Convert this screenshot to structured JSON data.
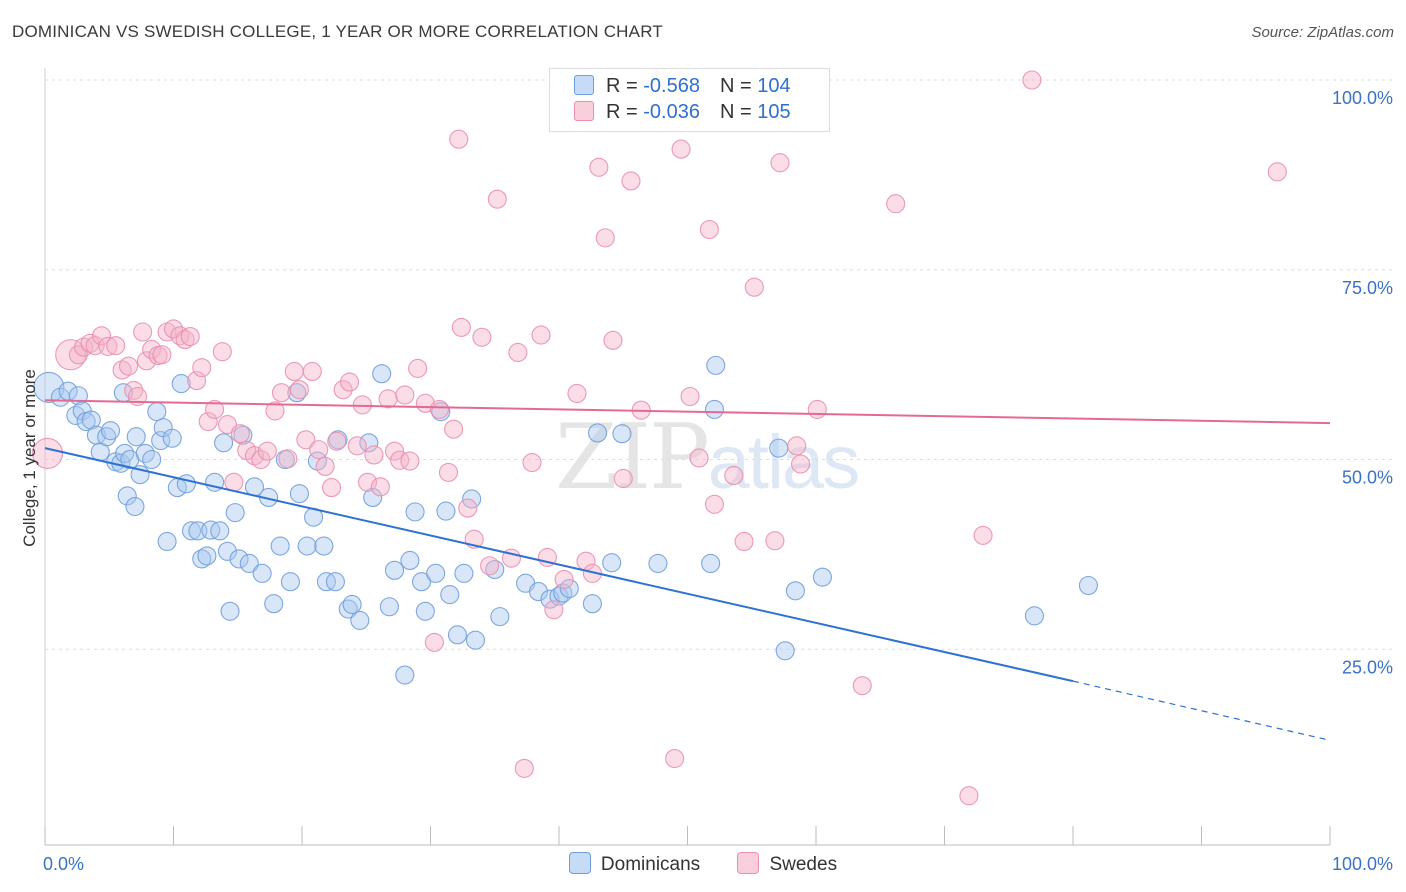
{
  "title": "DOMINICAN VS SWEDISH COLLEGE, 1 YEAR OR MORE CORRELATION CHART",
  "source": "Source: ZipAtlas.com",
  "watermark": {
    "zip": "ZIP",
    "atlas": "atlas"
  },
  "legend": {
    "rows": [
      {
        "r_label": "R = ",
        "r_value": "-0.568",
        "n_label": "N = ",
        "n_value": "104",
        "color": "#a9c8f0"
      },
      {
        "r_label": "R = ",
        "r_value": "-0.036",
        "n_label": "N = ",
        "n_value": "105",
        "color": "#f5b3c8"
      }
    ]
  },
  "bottom_legend": [
    {
      "label": "Dominicans",
      "color": "#a9c8f0"
    },
    {
      "label": "Swedes",
      "color": "#f5b3c8"
    }
  ],
  "chart_data": {
    "type": "scatter",
    "title": "DOMINICAN VS SWEDISH COLLEGE, 1 YEAR OR MORE CORRELATION CHART",
    "xlabel": "",
    "ylabel": "College, 1 year or more",
    "xlim": [
      0,
      100
    ],
    "ylim": [
      0,
      100
    ],
    "x_tick_labels": [
      "0.0%",
      "100.0%"
    ],
    "y_tick_labels": [
      "25.0%",
      "50.0%",
      "75.0%",
      "100.0%"
    ],
    "y_ticks": [
      25,
      50,
      75,
      100
    ],
    "grid": true,
    "legend_position": "top-center",
    "series": [
      {
        "name": "Dominicans",
        "color": "#6f9fdc",
        "fill": "#a9c8f0",
        "trend": {
          "x0": 0,
          "y0": 51.5,
          "x1": 80,
          "y1": 20.8,
          "dash_to_x": 100,
          "dash_to_y": 13.0,
          "color": "#2f72d4"
        },
        "points": [
          [
            0.3,
            59.5,
            2
          ],
          [
            1.2,
            58.2,
            1
          ],
          [
            1.8,
            59.0,
            1
          ],
          [
            2.4,
            55.8,
            1
          ],
          [
            2.6,
            58.4,
            1
          ],
          [
            2.9,
            56.4,
            1
          ],
          [
            3.2,
            55.0,
            1
          ],
          [
            3.6,
            55.2,
            1
          ],
          [
            4.0,
            53.2,
            1
          ],
          [
            4.3,
            51.0,
            1
          ],
          [
            4.8,
            53.0,
            1
          ],
          [
            5.1,
            53.8,
            1
          ],
          [
            5.5,
            49.7,
            1
          ],
          [
            5.9,
            49.5,
            1
          ],
          [
            6.2,
            50.8,
            1
          ],
          [
            6.6,
            50.0,
            1
          ],
          [
            6.1,
            58.8,
            1
          ],
          [
            6.4,
            45.2,
            1
          ],
          [
            7.0,
            43.8,
            1
          ],
          [
            7.1,
            53.0,
            1
          ],
          [
            7.4,
            48.0,
            1
          ],
          [
            7.8,
            50.8,
            1
          ],
          [
            8.3,
            50.0,
            1
          ],
          [
            8.7,
            56.3,
            1
          ],
          [
            9.0,
            52.5,
            1
          ],
          [
            9.2,
            54.2,
            1
          ],
          [
            9.5,
            39.2,
            1
          ],
          [
            9.9,
            52.8,
            1
          ],
          [
            10.3,
            46.3,
            1
          ],
          [
            10.6,
            60.0,
            1
          ],
          [
            11.0,
            46.8,
            1
          ],
          [
            11.4,
            40.6,
            1
          ],
          [
            11.9,
            40.6,
            1
          ],
          [
            12.2,
            36.9,
            1
          ],
          [
            12.6,
            37.3,
            1
          ],
          [
            12.9,
            40.7,
            1
          ],
          [
            13.2,
            47.0,
            1
          ],
          [
            13.6,
            40.6,
            1
          ],
          [
            13.9,
            52.2,
            1
          ],
          [
            14.2,
            37.9,
            1
          ],
          [
            14.4,
            30.0,
            1
          ],
          [
            14.8,
            43.0,
            1
          ],
          [
            15.1,
            36.9,
            1
          ],
          [
            15.4,
            53.2,
            1
          ],
          [
            15.9,
            36.3,
            1
          ],
          [
            16.3,
            46.4,
            1
          ],
          [
            16.9,
            35.0,
            1
          ],
          [
            17.4,
            45.0,
            1
          ],
          [
            17.8,
            31.0,
            1
          ],
          [
            18.3,
            38.6,
            1
          ],
          [
            18.7,
            50.0,
            1
          ],
          [
            19.1,
            33.9,
            1
          ],
          [
            19.6,
            58.8,
            1
          ],
          [
            19.8,
            45.5,
            1
          ],
          [
            20.4,
            38.6,
            1
          ],
          [
            20.9,
            42.4,
            1
          ],
          [
            21.2,
            49.8,
            1
          ],
          [
            21.7,
            38.6,
            1
          ],
          [
            21.9,
            33.9,
            1
          ],
          [
            22.6,
            33.9,
            1
          ],
          [
            22.8,
            52.6,
            1
          ],
          [
            23.6,
            30.3,
            1
          ],
          [
            23.9,
            30.9,
            1
          ],
          [
            24.5,
            28.8,
            1
          ],
          [
            25.2,
            52.2,
            1
          ],
          [
            25.5,
            45.0,
            1
          ],
          [
            26.2,
            61.3,
            1
          ],
          [
            26.8,
            30.6,
            1
          ],
          [
            27.2,
            35.4,
            1
          ],
          [
            28.0,
            21.6,
            1
          ],
          [
            28.4,
            36.7,
            1
          ],
          [
            28.8,
            43.1,
            1
          ],
          [
            29.3,
            33.9,
            1
          ],
          [
            29.6,
            30.0,
            1
          ],
          [
            30.4,
            35.0,
            1
          ],
          [
            30.8,
            56.3,
            1
          ],
          [
            31.2,
            43.2,
            1
          ],
          [
            31.5,
            32.2,
            1
          ],
          [
            32.1,
            26.9,
            1
          ],
          [
            32.6,
            35.0,
            1
          ],
          [
            33.2,
            44.8,
            1
          ],
          [
            33.5,
            26.2,
            1
          ],
          [
            35.0,
            35.5,
            1
          ],
          [
            35.4,
            29.3,
            1
          ],
          [
            37.4,
            33.7,
            1
          ],
          [
            38.4,
            32.6,
            1
          ],
          [
            39.3,
            31.6,
            1
          ],
          [
            40.0,
            32.0,
            1
          ],
          [
            40.3,
            32.4,
            1
          ],
          [
            40.8,
            33.0,
            1
          ],
          [
            42.6,
            31.0,
            1
          ],
          [
            43.0,
            53.5,
            1
          ],
          [
            44.1,
            36.4,
            1
          ],
          [
            44.9,
            53.4,
            1
          ],
          [
            47.7,
            36.3,
            1
          ],
          [
            52.1,
            56.6,
            1
          ],
          [
            51.8,
            36.3,
            1
          ],
          [
            57.1,
            51.5,
            1
          ],
          [
            58.4,
            32.7,
            1
          ],
          [
            60.5,
            34.5,
            1
          ],
          [
            57.6,
            24.8,
            1
          ],
          [
            77.0,
            29.4,
            1
          ],
          [
            81.2,
            33.4,
            1
          ],
          [
            52.2,
            62.4,
            1
          ]
        ]
      },
      {
        "name": "Swedes",
        "color": "#ea8fae",
        "fill": "#f5b3c8",
        "trend": {
          "x0": 0,
          "y0": 57.8,
          "x1": 100,
          "y1": 54.8,
          "color": "#e56a93"
        },
        "points": [
          [
            0.2,
            50.8,
            2
          ],
          [
            2.0,
            63.8,
            2
          ],
          [
            2.6,
            63.8,
            1
          ],
          [
            3.0,
            64.8,
            1
          ],
          [
            3.5,
            65.3,
            1
          ],
          [
            3.9,
            65.0,
            1
          ],
          [
            4.4,
            66.3,
            1
          ],
          [
            4.9,
            64.9,
            1
          ],
          [
            5.5,
            65.0,
            1
          ],
          [
            6.0,
            61.8,
            1
          ],
          [
            6.5,
            62.3,
            1
          ],
          [
            6.9,
            59.1,
            1
          ],
          [
            7.2,
            58.3,
            1
          ],
          [
            7.6,
            66.8,
            1
          ],
          [
            7.9,
            63.0,
            1
          ],
          [
            8.3,
            64.5,
            1
          ],
          [
            8.8,
            63.7,
            1
          ],
          [
            9.1,
            63.8,
            1
          ],
          [
            9.5,
            66.8,
            1
          ],
          [
            10.0,
            67.2,
            1
          ],
          [
            10.5,
            66.3,
            1
          ],
          [
            10.9,
            65.8,
            1
          ],
          [
            11.3,
            66.2,
            1
          ],
          [
            11.8,
            60.4,
            1
          ],
          [
            12.2,
            62.1,
            1
          ],
          [
            12.7,
            55.0,
            1
          ],
          [
            13.2,
            56.6,
            1
          ],
          [
            13.8,
            64.2,
            1
          ],
          [
            14.2,
            54.6,
            1
          ],
          [
            14.7,
            47.0,
            1
          ],
          [
            15.2,
            53.4,
            1
          ],
          [
            15.7,
            51.2,
            1
          ],
          [
            16.3,
            50.5,
            1
          ],
          [
            16.8,
            50.0,
            1
          ],
          [
            17.3,
            51.1,
            1
          ],
          [
            17.9,
            56.4,
            1
          ],
          [
            18.4,
            58.8,
            1
          ],
          [
            18.9,
            50.1,
            1
          ],
          [
            19.4,
            61.6,
            1
          ],
          [
            19.8,
            59.2,
            1
          ],
          [
            20.3,
            52.6,
            1
          ],
          [
            20.8,
            61.6,
            1
          ],
          [
            21.3,
            51.3,
            1
          ],
          [
            21.8,
            49.1,
            1
          ],
          [
            22.3,
            46.3,
            1
          ],
          [
            22.7,
            52.4,
            1
          ],
          [
            23.2,
            59.2,
            1
          ],
          [
            23.7,
            60.2,
            1
          ],
          [
            24.3,
            51.8,
            1
          ],
          [
            24.7,
            57.2,
            1
          ],
          [
            25.1,
            47.0,
            1
          ],
          [
            25.6,
            50.6,
            1
          ],
          [
            26.1,
            46.4,
            1
          ],
          [
            26.7,
            58.0,
            1
          ],
          [
            27.2,
            51.1,
            1
          ],
          [
            27.6,
            49.9,
            1
          ],
          [
            28.0,
            58.5,
            1
          ],
          [
            28.4,
            49.8,
            1
          ],
          [
            29.0,
            62.0,
            1
          ],
          [
            29.6,
            57.4,
            1
          ],
          [
            30.3,
            25.9,
            1
          ],
          [
            30.7,
            56.6,
            1
          ],
          [
            31.4,
            48.3,
            1
          ],
          [
            31.8,
            54.0,
            1
          ],
          [
            32.4,
            67.4,
            1
          ],
          [
            32.9,
            43.6,
            1
          ],
          [
            33.4,
            39.5,
            1
          ],
          [
            34.0,
            66.1,
            1
          ],
          [
            34.6,
            36.0,
            1
          ],
          [
            35.2,
            84.3,
            1
          ],
          [
            36.3,
            37.0,
            1
          ],
          [
            36.8,
            64.1,
            1
          ],
          [
            37.3,
            9.3,
            1
          ],
          [
            37.9,
            49.6,
            1
          ],
          [
            38.6,
            66.4,
            1
          ],
          [
            39.1,
            37.1,
            1
          ],
          [
            39.6,
            30.2,
            1
          ],
          [
            40.4,
            34.2,
            1
          ],
          [
            41.4,
            58.7,
            1
          ],
          [
            42.1,
            36.6,
            1
          ],
          [
            42.6,
            35.0,
            1
          ],
          [
            43.1,
            88.5,
            1
          ],
          [
            43.6,
            79.2,
            1
          ],
          [
            44.2,
            65.7,
            1
          ],
          [
            45.0,
            47.5,
            1
          ],
          [
            45.6,
            86.7,
            1
          ],
          [
            46.4,
            56.5,
            1
          ],
          [
            48.0,
            100.0,
            1
          ],
          [
            49.0,
            10.6,
            1
          ],
          [
            49.5,
            90.9,
            1
          ],
          [
            50.2,
            58.3,
            1
          ],
          [
            50.9,
            50.2,
            1
          ],
          [
            51.7,
            80.3,
            1
          ],
          [
            52.1,
            44.1,
            1
          ],
          [
            53.6,
            47.9,
            1
          ],
          [
            54.4,
            39.2,
            1
          ],
          [
            55.2,
            72.7,
            1
          ],
          [
            56.8,
            39.3,
            1
          ],
          [
            57.2,
            89.1,
            1
          ],
          [
            58.5,
            51.8,
            1
          ],
          [
            58.8,
            49.4,
            1
          ],
          [
            60.1,
            56.6,
            1
          ],
          [
            63.6,
            20.2,
            1
          ],
          [
            66.2,
            83.7,
            1
          ],
          [
            71.9,
            5.7,
            1
          ],
          [
            73.0,
            40.0,
            1
          ],
          [
            76.8,
            100.0,
            1
          ],
          [
            95.9,
            87.9,
            1
          ],
          [
            32.2,
            92.2,
            1
          ]
        ]
      }
    ]
  }
}
